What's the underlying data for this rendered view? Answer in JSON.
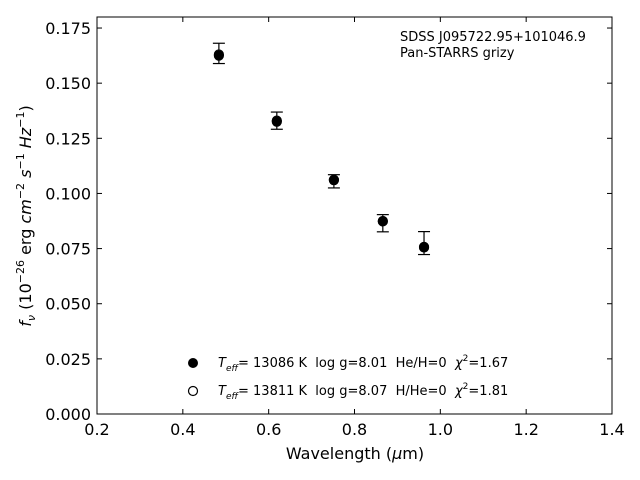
{
  "chart_data": {
    "type": "scatter",
    "xlabel_pre": "Wavelength (",
    "xlabel_mu": "μ",
    "xlabel_post": "m)",
    "ylabel": "f_ν (10^−26 erg cm^−2 s^−1 Hz^−1)",
    "xlim": [
      0.2,
      1.4
    ],
    "ylim": [
      0.0,
      0.18
    ],
    "xticks": [
      0.2,
      0.4,
      0.6,
      0.8,
      1.0,
      1.2,
      1.4
    ],
    "xtick_labels": [
      "0.2",
      "0.4",
      "0.6",
      "0.8",
      "1.0",
      "1.2",
      "1.4"
    ],
    "yticks": [
      0.0,
      0.025,
      0.05,
      0.075,
      0.1,
      0.125,
      0.15,
      0.175
    ],
    "ytick_labels": [
      "0.000",
      "0.025",
      "0.050",
      "0.075",
      "0.100",
      "0.125",
      "0.150",
      "0.175"
    ],
    "annotation": [
      "SDSS J095722.95+101046.9",
      "Pan-STARRS grizy"
    ],
    "observed": {
      "x": [
        0.484,
        0.619,
        0.752,
        0.866,
        0.962
      ],
      "y": [
        0.1635,
        0.133,
        0.1055,
        0.0865,
        0.0775
      ],
      "err": [
        0.0046,
        0.0039,
        0.003,
        0.0039,
        0.0052
      ]
    },
    "series": [
      {
        "marker": "filled-circle",
        "x": [
          0.484,
          0.619,
          0.752,
          0.866,
          0.962
        ],
        "y": [
          0.1625,
          0.1325,
          0.106,
          0.0875,
          0.0755
        ]
      },
      {
        "marker": "open-circle",
        "x": [
          0.484,
          0.619,
          0.752,
          0.866,
          0.962
        ],
        "y": [
          0.163,
          0.133,
          0.1062,
          0.0873,
          0.0758
        ]
      }
    ],
    "legend": [
      {
        "marker": "filled-circle",
        "teff_label": "T",
        "teff_sub": "eff",
        "rest": "= 13086 K  log g=8.01  He/H=0  ",
        "chi": "χ",
        "chi_sup": "2",
        "chi_val": "=1.67"
      },
      {
        "marker": "open-circle",
        "teff_label": "T",
        "teff_sub": "eff",
        "rest": "= 13811 K  log g=8.07  H/He=0  ",
        "chi": "χ",
        "chi_sup": "2",
        "chi_val": "=1.81"
      }
    ],
    "legend_position": "lower-center",
    "grid": false
  }
}
